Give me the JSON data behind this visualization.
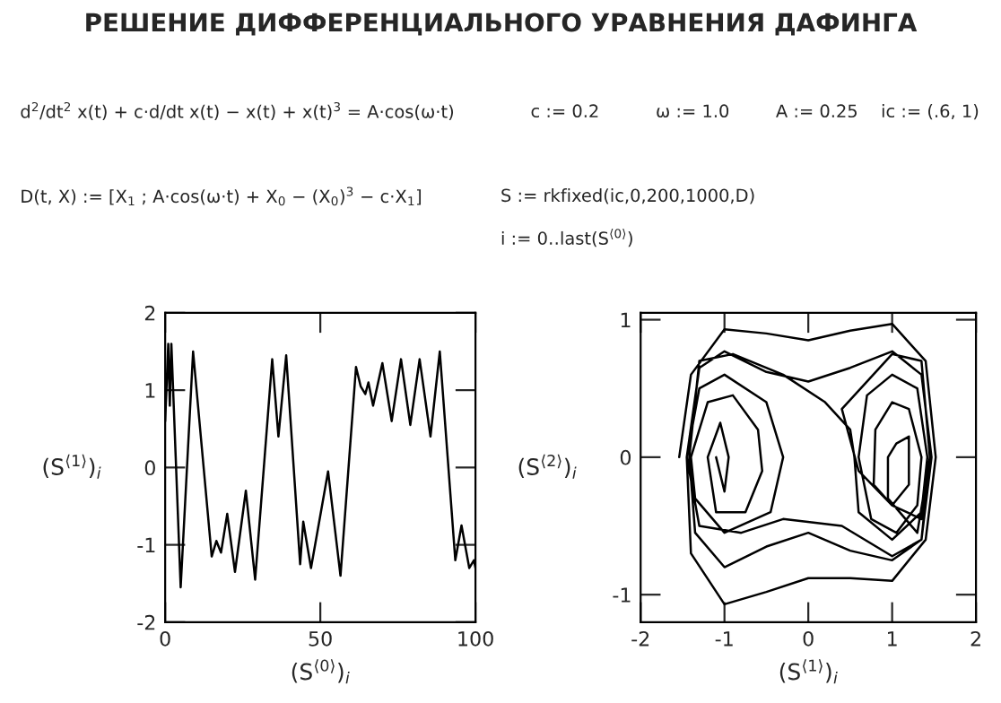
{
  "chart_data": [
    {
      "type": "line",
      "title": "РЕШЕНИЕ ДИФФЕРЕНЦИАЛЬНОГО УРАВНЕНИЯ ДАФИНГА",
      "annotations": [
        "d$^{2}$/dt$^{2}$ x(t) + c·d/dt x(t) − x(t) + x(t)$^{3}$ = A·cos(ω·t)",
        "c := 0.2",
        "ω := 1.0",
        "A := 0.25",
        "ic := (.6, 1)",
        "D(t, X) := [X$_{1}$ ; A·cos(ω·t) + X$_{0}$ − (X$_{0}$)$^{3}$ − c·X$_{1}$]",
        "S := rkfixed(ic,0,200,1000,D)",
        "i := 0‥last(S$^{⟨0⟩}$)"
      ],
      "xlabel": "(S$^{⟨0⟩}$)$_{i}$",
      "ylabel": "(S$^{⟨1⟩}$)$_{i}$",
      "xlim": [
        0,
        100
      ],
      "ylim": [
        -2,
        2
      ],
      "xticks": [
        0,
        50,
        100
      ],
      "yticks": [
        -2,
        -1,
        0,
        1,
        2
      ],
      "grid": false,
      "line_style": "solid",
      "series": [
        {
          "color": "#000000",
          "x": [
            0,
            1,
            1.5,
            2,
            5,
            9,
            15,
            16.5,
            18,
            20,
            22.5,
            26,
            29,
            34.5,
            36.5,
            39,
            43.5,
            44.5,
            47,
            52.5,
            56.5,
            61.5,
            63,
            64.5,
            65.5,
            67,
            70,
            73,
            76,
            79,
            82,
            85.5,
            88.5,
            93.5,
            95.5,
            98,
            99.5,
            100
          ],
          "values": [
            0.6,
            1.6,
            0.8,
            1.6,
            -1.55,
            1.5,
            -1.15,
            -0.95,
            -1.1,
            -0.6,
            -1.35,
            -0.3,
            -1.45,
            1.4,
            0.4,
            1.45,
            -1.25,
            -0.7,
            -1.3,
            -0.05,
            -1.4,
            1.3,
            1.05,
            0.95,
            1.1,
            0.8,
            1.35,
            0.6,
            1.4,
            0.55,
            1.4,
            0.4,
            1.5,
            -1.2,
            -0.75,
            -1.3,
            -1.2,
            -1.3
          ]
        }
      ]
    },
    {
      "type": "line",
      "xlabel": "(S$^{⟨1⟩}$)$_{i}$",
      "ylabel": "(S$^{⟨2⟩}$)$_{i}$",
      "xlim": [
        -2,
        2
      ],
      "ylim": [
        -1.2,
        1.05
      ],
      "xticks": [
        -2,
        -1,
        0,
        1,
        2
      ],
      "yticks": [
        -1,
        0,
        1
      ],
      "grid": false,
      "line_style": "solid",
      "series": [
        {
          "color": "#000000",
          "x": [
            -1.54,
            -1.4,
            -1.0,
            -0.5,
            0,
            0.5,
            1.0,
            1.4,
            1.52,
            1.4,
            1.0,
            0.5,
            0,
            -0.5,
            -1.0,
            -1.4,
            -1.45,
            -1.3,
            -1.0,
            -0.5,
            0,
            0.5,
            1.0,
            1.35,
            1.47,
            1.35,
            1.0,
            0.5,
            0,
            -0.5,
            -1.0,
            -1.35,
            -1.42,
            -1.3,
            -0.9,
            -0.3,
            0.2,
            0.5,
            0.55,
            0.6,
            1.0,
            1.35,
            1.42,
            1.3,
            1.0,
            0.7,
            0.6,
            0.75,
            1.05,
            1.3,
            1.35,
            1.2,
            1.0,
            0.8,
            0.78,
            1.0,
            1.2,
            1.2,
            1.05,
            0.95,
            0.95,
            1.3,
            1.45,
            1.35,
            1.0,
            0.4,
            0.6,
            1.0,
            1.35,
            1.45,
            1.35,
            1.0,
            0.4,
            -0.3,
            -0.8,
            -1.3,
            -1.45,
            -1.3,
            -1.0,
            -0.5,
            -0.3,
            -0.45,
            -1.0,
            -1.35,
            -1.4,
            -1.2,
            -0.9,
            -0.6,
            -0.55,
            -0.75,
            -1.1,
            -1.2,
            -1.05,
            -0.95,
            -1.0,
            -1.1
          ],
          "values": [
            0,
            0.6,
            0.93,
            0.9,
            0.85,
            0.92,
            0.97,
            0.7,
            0,
            -0.6,
            -0.9,
            -0.88,
            -0.88,
            -0.98,
            -1.07,
            -0.7,
            0,
            0.65,
            0.77,
            0.62,
            0.55,
            0.65,
            0.77,
            0.6,
            0,
            -0.6,
            -0.75,
            -0.68,
            -0.55,
            -0.65,
            -0.8,
            -0.55,
            0,
            0.7,
            0.75,
            0.6,
            0.4,
            0.2,
            0,
            -0.4,
            -0.6,
            -0.4,
            0,
            0.5,
            0.6,
            0.45,
            0,
            -0.45,
            -0.55,
            -0.35,
            0,
            0.35,
            0.4,
            0.2,
            -0.2,
            -0.35,
            -0.2,
            0.15,
            0.1,
            0,
            -0.3,
            -0.55,
            0,
            0.7,
            0.75,
            0.35,
            -0.1,
            -0.35,
            -0.45,
            0,
            -0.6,
            -0.72,
            -0.5,
            -0.45,
            -0.55,
            -0.5,
            0,
            0.5,
            0.6,
            0.4,
            0,
            -0.4,
            -0.55,
            -0.3,
            0,
            0.4,
            0.45,
            0.2,
            -0.1,
            -0.4,
            -0.4,
            0,
            0.25,
            0,
            -0.25,
            0
          ]
        }
      ]
    }
  ]
}
